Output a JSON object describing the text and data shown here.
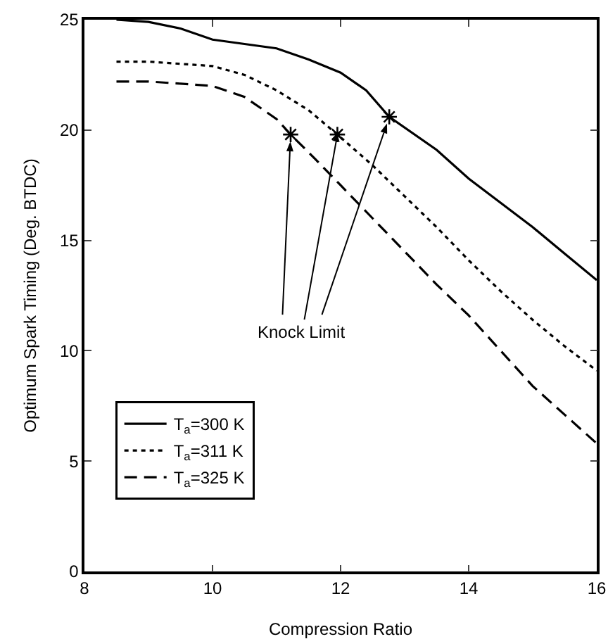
{
  "chart_data": {
    "type": "line",
    "xlabel": "Compression Ratio",
    "ylabel": "Optimum Spark Timing (Deg. BTDC)",
    "xlim": [
      8,
      16
    ],
    "xticks": [
      8,
      10,
      12,
      14,
      16
    ],
    "ylim": [
      0,
      25
    ],
    "yticks": [
      0,
      5,
      10,
      15,
      20,
      25
    ],
    "grid": false,
    "legend": "bottom left",
    "marker": "none",
    "series": [
      {
        "name": "T$_{a}$=300 K",
        "color": "#000000",
        "line_style": "solid",
        "x": [
          8.5,
          9,
          9.5,
          10,
          10.5,
          11,
          11.5,
          12,
          12.4,
          12.76,
          13.5,
          14,
          14.5,
          15,
          15.5,
          16
        ],
        "values": [
          25,
          24.9,
          24.6,
          24.1,
          23.9,
          23.7,
          23.2,
          22.6,
          21.8,
          20.6,
          19.1,
          17.8,
          16.7,
          15.6,
          14.4,
          13.2
        ]
      },
      {
        "name": "T$_{a}$=311 K",
        "color": "#000000",
        "line_style": "dotted",
        "x": [
          8.5,
          9,
          9.5,
          10,
          10.5,
          11,
          11.5,
          11.95,
          12.5,
          13,
          13.5,
          14,
          14.5,
          15,
          15.5,
          16
        ],
        "values": [
          23.1,
          23.1,
          23,
          22.9,
          22.5,
          21.8,
          20.9,
          19.8,
          18.4,
          17,
          15.6,
          14.1,
          12.7,
          11.4,
          10.2,
          9.1
        ]
      },
      {
        "name": "T$_{a}$=325 K",
        "color": "#000000",
        "line_style": "dashed",
        "x": [
          8.5,
          9,
          9.5,
          10,
          10.5,
          11,
          11.22,
          11.6,
          12,
          12.5,
          13,
          13.5,
          14,
          14.5,
          15,
          15.5,
          16
        ],
        "values": [
          22.2,
          22.2,
          22.1,
          22,
          21.5,
          20.5,
          19.8,
          18.7,
          17.5,
          16,
          14.5,
          13,
          11.6,
          10,
          8.4,
          7.1,
          5.8
        ]
      },
      {
        "type": "scatter",
        "color": "#000000",
        "marker": "cross",
        "x": [
          11.22,
          11.95,
          12.76
        ],
        "values": [
          19.8,
          19.8,
          20.6
        ]
      }
    ],
    "annotations": [
      {
        "text": "Knock Limit",
        "x": 11.95,
        "y": 19.8
      }
    ]
  }
}
